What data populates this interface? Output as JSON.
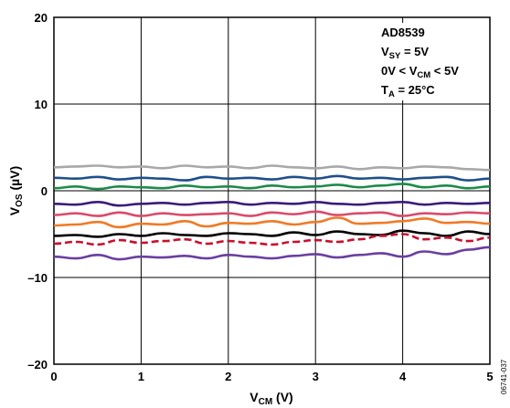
{
  "chart_data": {
    "type": "line",
    "xlabel": {
      "main": "V",
      "sub": "CM",
      "rest": " (V)"
    },
    "ylabel": {
      "main": "V",
      "sub": "OS",
      "rest": " (µV)"
    },
    "xlim": [
      0,
      5
    ],
    "ylim": [
      -20,
      20
    ],
    "x_ticks": [
      "0",
      "1",
      "2",
      "3",
      "4",
      "5"
    ],
    "y_ticks": [
      "20",
      "10",
      "0",
      "–10",
      "–20"
    ],
    "grid": true,
    "annotation": {
      "title": "AD8539",
      "line1": {
        "main": "V",
        "sub": "SY",
        "rest": " = 5V"
      },
      "line2": {
        "pre": "0V < V",
        "sub": "CM",
        "rest": " < 5V"
      },
      "line3": {
        "main": "T",
        "sub": "A",
        "rest": " = 25°C"
      }
    },
    "figure_code": "06741-037",
    "series": [
      {
        "color": "#a8a8a8",
        "dashed": false,
        "y": [
          2.7,
          2.8,
          2.9,
          2.7,
          2.8,
          2.6,
          2.9,
          2.7,
          2.8,
          2.6,
          2.9,
          2.7,
          2.6,
          2.8,
          2.5,
          2.7,
          2.6,
          2.8,
          2.7,
          2.5,
          2.4
        ]
      },
      {
        "color": "#1e4f8c",
        "dashed": false,
        "y": [
          1.5,
          1.4,
          1.6,
          1.3,
          1.5,
          1.4,
          1.2,
          1.6,
          1.4,
          1.5,
          1.3,
          1.6,
          1.4,
          1.7,
          1.4,
          1.5,
          1.3,
          1.5,
          1.6,
          1.2,
          1.4
        ]
      },
      {
        "color": "#1e8a4a",
        "dashed": false,
        "y": [
          0.3,
          0.5,
          0.2,
          0.5,
          0.4,
          0.3,
          0.6,
          0.4,
          0.5,
          0.3,
          0.6,
          0.4,
          0.5,
          0.7,
          0.4,
          0.6,
          0.8,
          0.4,
          0.6,
          0.3,
          0.5
        ]
      },
      {
        "color": "#3a1b7a",
        "dashed": false,
        "y": [
          -1.5,
          -1.6,
          -1.3,
          -1.7,
          -1.5,
          -1.4,
          -1.6,
          -1.4,
          -1.3,
          -1.6,
          -1.4,
          -1.5,
          -1.3,
          -1.5,
          -1.6,
          -1.4,
          -1.3,
          -1.6,
          -1.4,
          -1.5,
          -1.4
        ]
      },
      {
        "color": "#d84c6b",
        "dashed": false,
        "y": [
          -2.8,
          -2.6,
          -2.9,
          -2.5,
          -2.9,
          -2.6,
          -2.8,
          -2.7,
          -2.6,
          -2.9,
          -2.5,
          -2.7,
          -2.4,
          -2.8,
          -2.6,
          -2.5,
          -2.9,
          -2.6,
          -2.7,
          -2.5,
          -2.6
        ]
      },
      {
        "color": "#f07a26",
        "dashed": false,
        "y": [
          -4.0,
          -3.9,
          -3.6,
          -4.2,
          -3.8,
          -3.9,
          -3.5,
          -4.1,
          -3.7,
          -3.8,
          -3.5,
          -3.9,
          -3.6,
          -3.1,
          -3.8,
          -3.7,
          -3.5,
          -3.2,
          -3.7,
          -3.6,
          -3.8
        ]
      },
      {
        "color": "#000000",
        "dashed": false,
        "y": [
          -5.2,
          -5.1,
          -5.3,
          -5.0,
          -5.2,
          -4.9,
          -5.1,
          -5.2,
          -4.9,
          -5.0,
          -5.2,
          -4.8,
          -5.1,
          -4.7,
          -5.0,
          -5.1,
          -4.6,
          -4.9,
          -5.2,
          -4.7,
          -5.0
        ]
      },
      {
        "color": "#c8102e",
        "dashed": true,
        "y": [
          -6.1,
          -5.9,
          -6.2,
          -5.7,
          -6.0,
          -5.8,
          -5.6,
          -6.1,
          -5.8,
          -6.0,
          -6.2,
          -5.9,
          -5.7,
          -5.9,
          -5.6,
          -5.2,
          -5.0,
          -5.6,
          -5.4,
          -5.8,
          -5.4
        ]
      },
      {
        "color": "#6a3fa0",
        "dashed": false,
        "y": [
          -7.6,
          -7.8,
          -7.4,
          -7.9,
          -7.6,
          -7.7,
          -7.5,
          -7.8,
          -7.4,
          -7.6,
          -7.8,
          -7.5,
          -7.3,
          -7.7,
          -7.4,
          -7.2,
          -7.6,
          -7.0,
          -7.3,
          -6.8,
          -6.5
        ]
      }
    ]
  }
}
